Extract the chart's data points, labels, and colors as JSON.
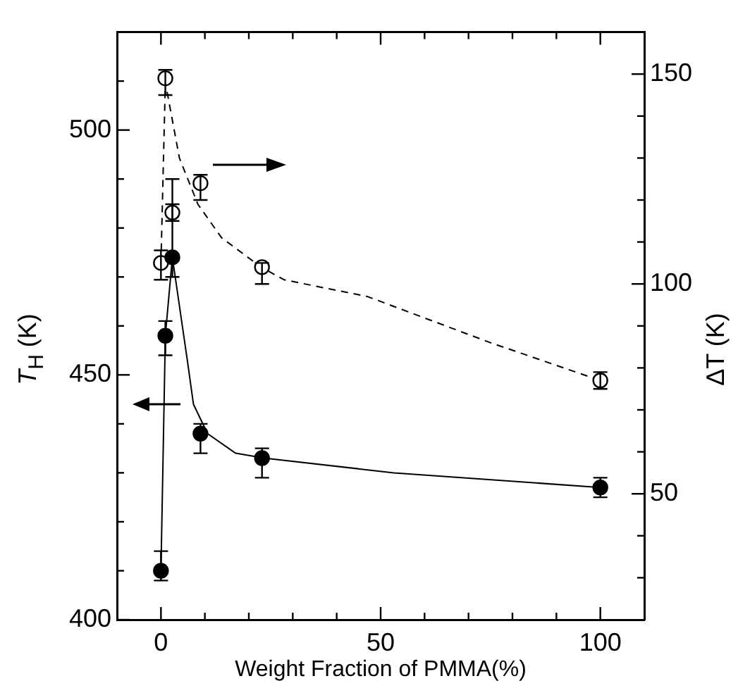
{
  "chart_data": {
    "type": "scatter",
    "xlabel": "Weight Fraction of PMMA(%)",
    "ylabel": "T$_{H}$ (K)",
    "y2label": "ΔT (K)",
    "xlim": [
      -10,
      110
    ],
    "xticks": [
      0,
      {
        "value": 10,
        "label": null
      },
      {
        "value": 20,
        "label": null
      },
      {
        "value": 30,
        "label": null
      },
      {
        "value": 40,
        "label": null
      },
      50,
      {
        "value": 60,
        "label": null
      },
      {
        "value": 70,
        "label": null
      },
      {
        "value": 80,
        "label": null
      },
      {
        "value": 90,
        "label": null
      },
      100
    ],
    "ylim": [
      400,
      520
    ],
    "yticks": [
      400,
      {
        "value": 410,
        "label": null
      },
      {
        "value": 420,
        "label": null
      },
      {
        "value": 430,
        "label": null
      },
      {
        "value": 440,
        "label": null
      },
      450,
      {
        "value": 460,
        "label": null
      },
      {
        "value": 470,
        "label": null
      },
      {
        "value": 480,
        "label": null
      },
      {
        "value": 490,
        "label": null
      },
      500,
      {
        "value": 510,
        "label": null
      }
    ],
    "y2lim": [
      20,
      160
    ],
    "y2ticks": [
      {
        "value": 30,
        "label": null
      },
      {
        "value": 40,
        "label": null
      },
      50,
      {
        "value": 60,
        "label": null
      },
      {
        "value": 70,
        "label": null
      },
      {
        "value": 80,
        "label": null
      },
      {
        "value": 90,
        "label": null
      },
      100,
      {
        "value": 110,
        "label": null
      },
      {
        "value": 120,
        "label": null
      },
      {
        "value": 130,
        "label": null
      },
      {
        "value": 140,
        "label": null
      },
      150
    ],
    "grid": false,
    "legend": false,
    "series": [
      {
        "type": "scatter",
        "axis": "y",
        "color": "#000000",
        "marker": "circle",
        "x": [
          0,
          1,
          2.6,
          9,
          23,
          100
        ],
        "values": [
          410,
          458,
          474,
          438,
          433,
          427
        ],
        "errors": [
          [
            408,
            414
          ],
          [
            454,
            461
          ],
          [
            470,
            490
          ],
          [
            434,
            440
          ],
          [
            429,
            435
          ],
          [
            425,
            429
          ]
        ]
      },
      {
        "type": "scatter",
        "axis": "y2",
        "color": "#ffffff",
        "marker": "circle",
        "x": [
          0,
          1,
          2.6,
          9,
          23,
          100
        ],
        "values": [
          105,
          149,
          117,
          124,
          104,
          77
        ],
        "errors": [
          [
            101,
            108
          ],
          [
            145,
            151
          ],
          [
            115,
            119
          ],
          [
            120,
            126
          ],
          [
            100,
            105
          ],
          [
            75,
            79
          ]
        ]
      },
      {
        "type": "line",
        "axis": "y",
        "color": "#000000",
        "line_style": "solid",
        "marker": "none",
        "x": [
          0,
          1,
          2.6,
          6,
          7.4,
          10.6,
          17,
          23.5,
          53,
          100
        ],
        "values": [
          410,
          458,
          474,
          453,
          444,
          438,
          434,
          433,
          430,
          427
        ]
      },
      {
        "type": "line",
        "axis": "y2",
        "color": "#000000",
        "line_style": "dashed",
        "marker": "none",
        "x": [
          0,
          1,
          4.2,
          8.4,
          13.8,
          22.8,
          28,
          47,
          75,
          100
        ],
        "values": [
          105,
          148,
          130,
          119,
          111,
          104,
          101,
          97,
          86,
          77
        ]
      }
    ]
  }
}
